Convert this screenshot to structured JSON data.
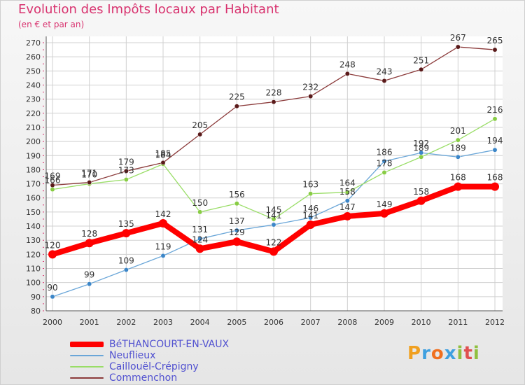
{
  "title": "Evolution des Impôts locaux par Habitant",
  "subtitle": "(en € et par an)",
  "logo": {
    "letters": [
      "P",
      "r",
      "o",
      "x",
      "i",
      "t",
      "i"
    ],
    "colors": [
      "#f0a020",
      "#3fa0e0",
      "#f07020",
      "#3fa0e0",
      "#90c040",
      "#e05050",
      "#90c040"
    ]
  },
  "chart_data": {
    "type": "line",
    "x": [
      "2000",
      "2001",
      "2002",
      "2003",
      "2004",
      "2005",
      "2006",
      "2007",
      "2008",
      "2009",
      "2010",
      "2011",
      "2012"
    ],
    "ylim": [
      80,
      270
    ],
    "yticks": [
      80,
      90,
      100,
      110,
      120,
      130,
      140,
      150,
      160,
      170,
      180,
      190,
      200,
      210,
      220,
      230,
      240,
      250,
      260,
      270
    ],
    "grid": true,
    "legend_position": "bottom-left",
    "series": [
      {
        "name": "BéTHANCOURT-EN-VAUX",
        "color": "#ff0000",
        "width": 8,
        "values": [
          120,
          128,
          135,
          142,
          124,
          129,
          122,
          141,
          147,
          149,
          158,
          168,
          168
        ]
      },
      {
        "name": "Neuflieux",
        "color": "#6aa6d8",
        "width": 1.3,
        "values": [
          90,
          99,
          109,
          119,
          131,
          137,
          141,
          146,
          158,
          186,
          192,
          189,
          194
        ]
      },
      {
        "name": "Caillouël-Crépigny",
        "color": "#99dd66",
        "width": 1.3,
        "values": [
          166,
          170,
          173,
          184,
          150,
          156,
          145,
          163,
          164,
          178,
          189,
          201,
          216
        ]
      },
      {
        "name": "Commenchon",
        "color": "#8b3a3a",
        "width": 1.3,
        "values": [
          169,
          171,
          179,
          185,
          205,
          225,
          228,
          232,
          248,
          243,
          251,
          267,
          265
        ]
      }
    ]
  }
}
